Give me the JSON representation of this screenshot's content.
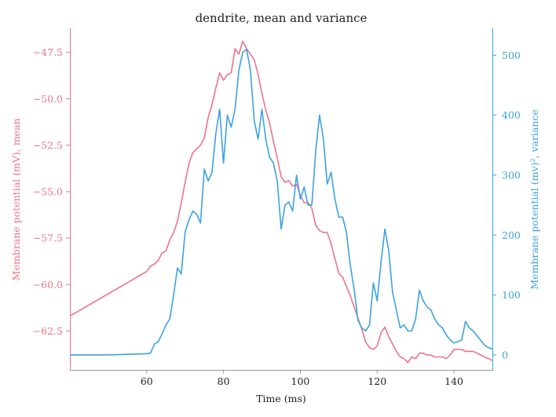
{
  "chart_data": {
    "type": "line",
    "title": "dendrite, mean and variance",
    "xlabel": "Time (ms)",
    "ylabel_left": "Membrane potential (mV), mean",
    "ylabel_right": "Membrane potential (mv)², variance",
    "xlim": [
      40,
      150
    ],
    "ylim_left": [
      -64.6,
      -46.2
    ],
    "ylim_right": [
      -25,
      545
    ],
    "x_ticks": [
      60,
      80,
      100,
      120,
      140
    ],
    "y_left_ticks": [
      -47.5,
      -50.0,
      -52.5,
      -55.0,
      -57.5,
      -60.0,
      -62.5
    ],
    "y_right_ticks": [
      0,
      100,
      200,
      300,
      400,
      500
    ],
    "grid": false,
    "colors": {
      "mean": "#f07389",
      "variance": "#3ba3e3",
      "spine": "#999999"
    },
    "series": [
      {
        "role": "mean",
        "axis": "left",
        "x": [
          40,
          45,
          50,
          55,
          60,
          61,
          62,
          63,
          64,
          65,
          66,
          67,
          68,
          69,
          70,
          71,
          72,
          73,
          74,
          75,
          76,
          77,
          78,
          79,
          80,
          81,
          82,
          83,
          84,
          85,
          86,
          87,
          88,
          89,
          90,
          91,
          92,
          93,
          94,
          95,
          96,
          97,
          98,
          99,
          100,
          101,
          102,
          103,
          104,
          105,
          106,
          107,
          108,
          109,
          110,
          111,
          112,
          113,
          114,
          115,
          116,
          117,
          118,
          119,
          120,
          121,
          122,
          123,
          124,
          125,
          126,
          127,
          128,
          129,
          130,
          131,
          132,
          133,
          134,
          135,
          136,
          137,
          138,
          139,
          140,
          141,
          142,
          143,
          144,
          145,
          146,
          147,
          148,
          149,
          150
        ],
        "values": [
          -61.7,
          -61.1,
          -60.5,
          -59.9,
          -59.3,
          -59.0,
          -58.9,
          -58.7,
          -58.3,
          -58.2,
          -57.6,
          -57.2,
          -56.6,
          -55.6,
          -54.5,
          -53.5,
          -52.9,
          -52.7,
          -52.5,
          -52.1,
          -51.0,
          -50.3,
          -49.4,
          -48.6,
          -49.0,
          -48.7,
          -48.6,
          -47.3,
          -47.6,
          -46.9,
          -47.3,
          -47.6,
          -47.9,
          -48.7,
          -49.7,
          -50.6,
          -51.3,
          -52.3,
          -53.2,
          -54.2,
          -54.5,
          -54.4,
          -54.7,
          -54.6,
          -55.2,
          -55.6,
          -55.6,
          -55.9,
          -56.8,
          -57.1,
          -57.2,
          -57.2,
          -57.8,
          -58.6,
          -59.4,
          -59.6,
          -60.1,
          -60.6,
          -61.2,
          -61.8,
          -62.4,
          -63.1,
          -63.4,
          -63.5,
          -63.3,
          -62.6,
          -62.3,
          -62.8,
          -63.2,
          -63.6,
          -63.9,
          -64.0,
          -64.2,
          -63.9,
          -64.0,
          -63.7,
          -63.7,
          -63.8,
          -63.8,
          -63.9,
          -63.9,
          -63.9,
          -64.0,
          -63.8,
          -63.5,
          -63.5,
          -63.5,
          -63.6,
          -63.6,
          -63.6,
          -63.7,
          -63.8,
          -63.9,
          -64.0,
          -64.1
        ]
      },
      {
        "role": "variance",
        "axis": "right",
        "x": [
          40,
          45,
          50,
          55,
          60,
          61,
          62,
          63,
          64,
          65,
          66,
          67,
          68,
          69,
          70,
          71,
          72,
          73,
          74,
          75,
          76,
          77,
          78,
          79,
          80,
          81,
          82,
          83,
          84,
          85,
          86,
          87,
          88,
          89,
          90,
          91,
          92,
          93,
          94,
          95,
          96,
          97,
          98,
          99,
          100,
          101,
          102,
          103,
          104,
          105,
          106,
          107,
          108,
          109,
          110,
          111,
          112,
          113,
          114,
          115,
          116,
          117,
          118,
          119,
          120,
          121,
          122,
          123,
          124,
          125,
          126,
          127,
          128,
          129,
          130,
          131,
          132,
          133,
          134,
          135,
          136,
          137,
          138,
          139,
          140,
          141,
          142,
          143,
          144,
          145,
          146,
          147,
          148,
          149,
          150
        ],
        "values": [
          0,
          0,
          0,
          1,
          2,
          3,
          18,
          22,
          35,
          50,
          60,
          100,
          145,
          135,
          205,
          225,
          240,
          235,
          220,
          310,
          290,
          305,
          370,
          410,
          320,
          400,
          380,
          410,
          475,
          505,
          510,
          475,
          390,
          360,
          410,
          360,
          330,
          320,
          290,
          210,
          250,
          255,
          240,
          300,
          260,
          280,
          250,
          250,
          340,
          400,
          360,
          285,
          305,
          260,
          230,
          230,
          205,
          150,
          110,
          58,
          45,
          40,
          50,
          120,
          90,
          155,
          210,
          175,
          105,
          75,
          45,
          50,
          40,
          40,
          60,
          108,
          90,
          80,
          75,
          60,
          50,
          45,
          33,
          25,
          20,
          22,
          25,
          56,
          45,
          40,
          32,
          24,
          16,
          12,
          10
        ]
      }
    ]
  }
}
